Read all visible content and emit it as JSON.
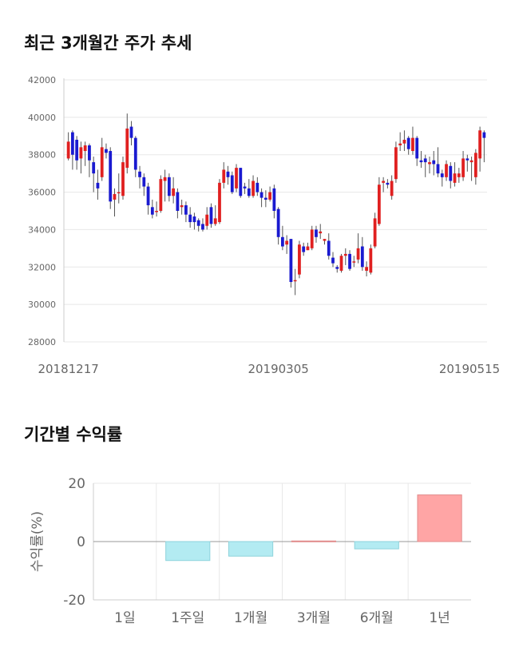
{
  "section1": {
    "title": "최근 3개월간 주가 추세"
  },
  "section2": {
    "title": "기간별 수익률"
  },
  "colors": {
    "up": "#e02020",
    "down": "#1a1ad0",
    "positive_bar": "#ffa5a5",
    "negative_bar": "#b3ebf2",
    "grid": "#e8e8e8",
    "axis": "#cccccc"
  },
  "chart_data": [
    {
      "type": "candlestick",
      "title": "최근 3개월간 주가 추세",
      "ylim": [
        28000,
        42000
      ],
      "y_ticks": [
        "28000",
        "30000",
        "32000",
        "34000",
        "36000",
        "38000",
        "40000",
        "42000"
      ],
      "x_ticks": [
        {
          "label": "20181217",
          "index": 0
        },
        {
          "label": "20190305",
          "index": 50
        },
        {
          "label": "20190515",
          "index": 97
        }
      ],
      "grid": true,
      "candles": [
        [
          37800,
          38700,
          39200,
          37700
        ],
        [
          39200,
          38000,
          39300,
          37200
        ],
        [
          38800,
          37700,
          39000,
          37200
        ],
        [
          37800,
          38400,
          38700,
          37000
        ],
        [
          38200,
          38500,
          38700,
          37400
        ],
        [
          38500,
          37700,
          38600,
          36800
        ],
        [
          37600,
          37000,
          37900,
          36000
        ],
        [
          36500,
          36200,
          37200,
          35600
        ],
        [
          36800,
          38400,
          38900,
          36600
        ],
        [
          38300,
          38100,
          38600,
          37800
        ],
        [
          38200,
          35500,
          38400,
          35100
        ],
        [
          35600,
          35900,
          36200,
          34700
        ],
        [
          36000,
          36000,
          37000,
          35400
        ],
        [
          35800,
          37600,
          37900,
          35600
        ],
        [
          37300,
          39400,
          40200,
          37000
        ],
        [
          39500,
          38900,
          39800,
          38500
        ],
        [
          38900,
          37200,
          39000,
          36800
        ],
        [
          37100,
          36800,
          37400,
          36200
        ],
        [
          36800,
          36300,
          37000,
          35800
        ],
        [
          36300,
          35300,
          36500,
          34800
        ],
        [
          35200,
          34800,
          35600,
          34600
        ],
        [
          35000,
          35000,
          35500,
          34700
        ],
        [
          35000,
          36700,
          36900,
          34900
        ],
        [
          36600,
          36800,
          37200,
          35500
        ],
        [
          36800,
          35800,
          37000,
          35500
        ],
        [
          35800,
          36200,
          36800,
          35400
        ],
        [
          36000,
          35000,
          36200,
          34600
        ],
        [
          35200,
          35300,
          35600,
          34800
        ],
        [
          35300,
          34800,
          35500,
          34400
        ],
        [
          34800,
          34400,
          35200,
          34100
        ],
        [
          34700,
          34400,
          34900,
          34000
        ],
        [
          34500,
          34200,
          34600,
          33900
        ],
        [
          34300,
          34000,
          34600,
          33900
        ],
        [
          34200,
          34800,
          35200,
          34000
        ],
        [
          35200,
          34300,
          35400,
          34100
        ],
        [
          34300,
          34600,
          35300,
          34200
        ],
        [
          34400,
          36500,
          36700,
          34300
        ],
        [
          36500,
          37200,
          37600,
          36200
        ],
        [
          37100,
          36800,
          37400,
          36400
        ],
        [
          36900,
          36000,
          37100,
          35900
        ],
        [
          36200,
          37300,
          37500,
          36000
        ],
        [
          37300,
          35800,
          37300,
          35700
        ],
        [
          36300,
          36200,
          36500,
          35900
        ],
        [
          36200,
          35800,
          36700,
          35700
        ],
        [
          35800,
          36600,
          36900,
          35700
        ],
        [
          36500,
          36000,
          36800,
          35800
        ],
        [
          36000,
          35700,
          36200,
          35200
        ],
        [
          35700,
          35600,
          36100,
          35200
        ],
        [
          35600,
          36000,
          36300,
          35500
        ],
        [
          36200,
          35000,
          36400,
          34600
        ],
        [
          35100,
          33600,
          35200,
          33200
        ],
        [
          33600,
          33100,
          34200,
          32900
        ],
        [
          33200,
          33400,
          33700,
          32700
        ],
        [
          33500,
          31200,
          33500,
          30900
        ],
        [
          31300,
          31300,
          31900,
          30500
        ],
        [
          31600,
          33200,
          33400,
          31400
        ],
        [
          33100,
          32800,
          33300,
          32600
        ],
        [
          32900,
          33100,
          33300,
          32900
        ],
        [
          33000,
          34000,
          34200,
          32900
        ],
        [
          34000,
          33600,
          34200,
          33300
        ],
        [
          33800,
          33900,
          34300,
          33500
        ],
        [
          33400,
          33500,
          33500,
          33200
        ],
        [
          33400,
          32600,
          33800,
          32400
        ],
        [
          32500,
          32200,
          32800,
          32000
        ],
        [
          32000,
          31900,
          32100,
          31700
        ],
        [
          31800,
          32600,
          32700,
          31700
        ],
        [
          32600,
          32700,
          33000,
          32100
        ],
        [
          32700,
          31900,
          32900,
          31800
        ],
        [
          32300,
          32300,
          32600,
          32000
        ],
        [
          32400,
          33000,
          33800,
          32200
        ],
        [
          33100,
          32000,
          33600,
          31800
        ],
        [
          31800,
          32000,
          32300,
          31500
        ],
        [
          31700,
          33000,
          33200,
          31600
        ],
        [
          33100,
          34600,
          34900,
          33000
        ],
        [
          34300,
          36400,
          36800,
          34200
        ],
        [
          36500,
          36600,
          36800,
          36000
        ],
        [
          36500,
          36400,
          36700,
          36200
        ],
        [
          35800,
          36600,
          36900,
          35600
        ],
        [
          36700,
          38400,
          38700,
          36500
        ],
        [
          38500,
          38600,
          39200,
          38200
        ],
        [
          38600,
          38800,
          39300,
          38200
        ],
        [
          38900,
          38300,
          39000,
          38000
        ],
        [
          38200,
          38900,
          39500,
          38000
        ],
        [
          38900,
          37800,
          39000,
          37400
        ],
        [
          37700,
          37600,
          38200,
          37300
        ],
        [
          37800,
          37600,
          38000,
          36800
        ],
        [
          37500,
          37600,
          37900,
          37000
        ],
        [
          37700,
          37500,
          38200,
          36900
        ],
        [
          37500,
          37000,
          38400,
          36800
        ],
        [
          37000,
          36800,
          37200,
          36300
        ],
        [
          36800,
          37500,
          37700,
          36600
        ],
        [
          37400,
          36600,
          37600,
          36200
        ],
        [
          36500,
          37000,
          37600,
          36300
        ],
        [
          36800,
          37000,
          37300,
          36500
        ],
        [
          36800,
          37800,
          38200,
          36600
        ],
        [
          37800,
          37700,
          38000,
          37100
        ],
        [
          37600,
          37700,
          37900,
          36600
        ],
        [
          36800,
          38100,
          38300,
          36400
        ],
        [
          37800,
          39300,
          39500,
          37100
        ],
        [
          39200,
          38900,
          39300,
          37600
        ]
      ]
    },
    {
      "type": "bar",
      "title": "기간별 수익률",
      "ylabel": "수익률(%)",
      "ylim": [
        -20,
        20
      ],
      "y_ticks": [
        "20",
        "0",
        "-20"
      ],
      "categories": [
        "1일",
        "1주일",
        "1개월",
        "3개월",
        "6개월",
        "1년"
      ],
      "values": [
        0,
        -6.5,
        -5,
        0.2,
        -2.5,
        16
      ],
      "grid": true
    }
  ]
}
